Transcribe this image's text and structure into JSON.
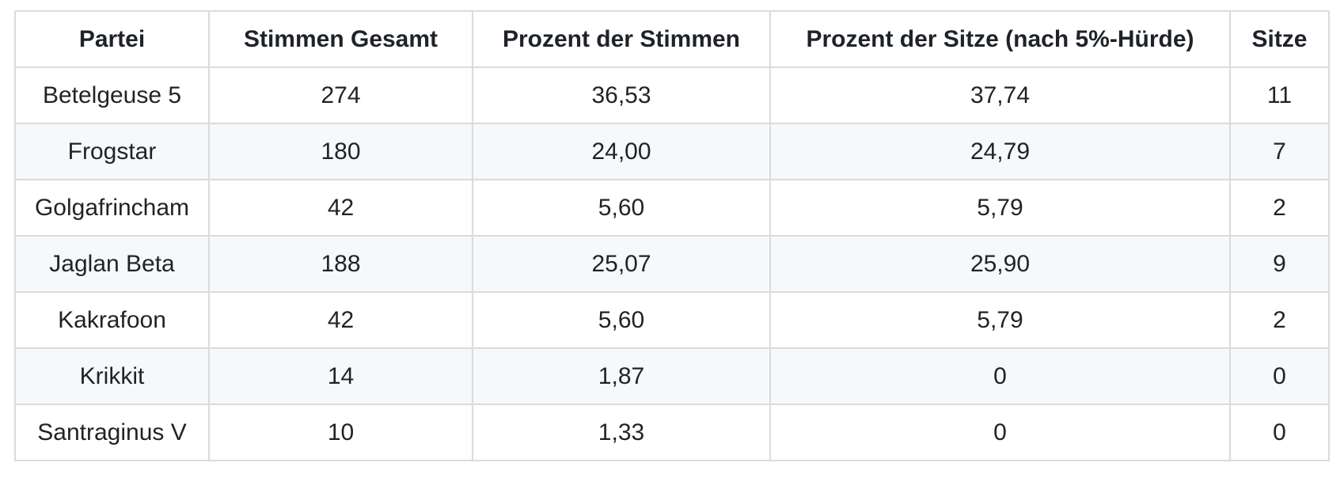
{
  "chart_data": {
    "type": "table",
    "title": "",
    "columns": [
      "Partei",
      "Stimmen Gesamt",
      "Prozent der Stimmen",
      "Prozent der Sitze (nach 5%-Hürde)",
      "Sitze"
    ],
    "rows": [
      [
        "Betelgeuse 5",
        "274",
        "36,53",
        "37,74",
        "11"
      ],
      [
        "Frogstar",
        "180",
        "24,00",
        "24,79",
        "7"
      ],
      [
        "Golgafrincham",
        "42",
        "5,60",
        "5,79",
        "2"
      ],
      [
        "Jaglan Beta",
        "188",
        "25,07",
        "25,90",
        "9"
      ],
      [
        "Kakrafoon",
        "42",
        "5,60",
        "5,79",
        "2"
      ],
      [
        "Krikkit",
        "14",
        "1,87",
        "0",
        "0"
      ],
      [
        "Santraginus V",
        "10",
        "1,33",
        "0",
        "0"
      ]
    ],
    "layout": {
      "zebra_striping": "even data rows shaded",
      "alignment": "center"
    }
  },
  "colors": {
    "row_stripe": "#f6f8fa",
    "cell_border": "#d8dbdf",
    "text": "#1f2328",
    "background": "#ffffff"
  }
}
